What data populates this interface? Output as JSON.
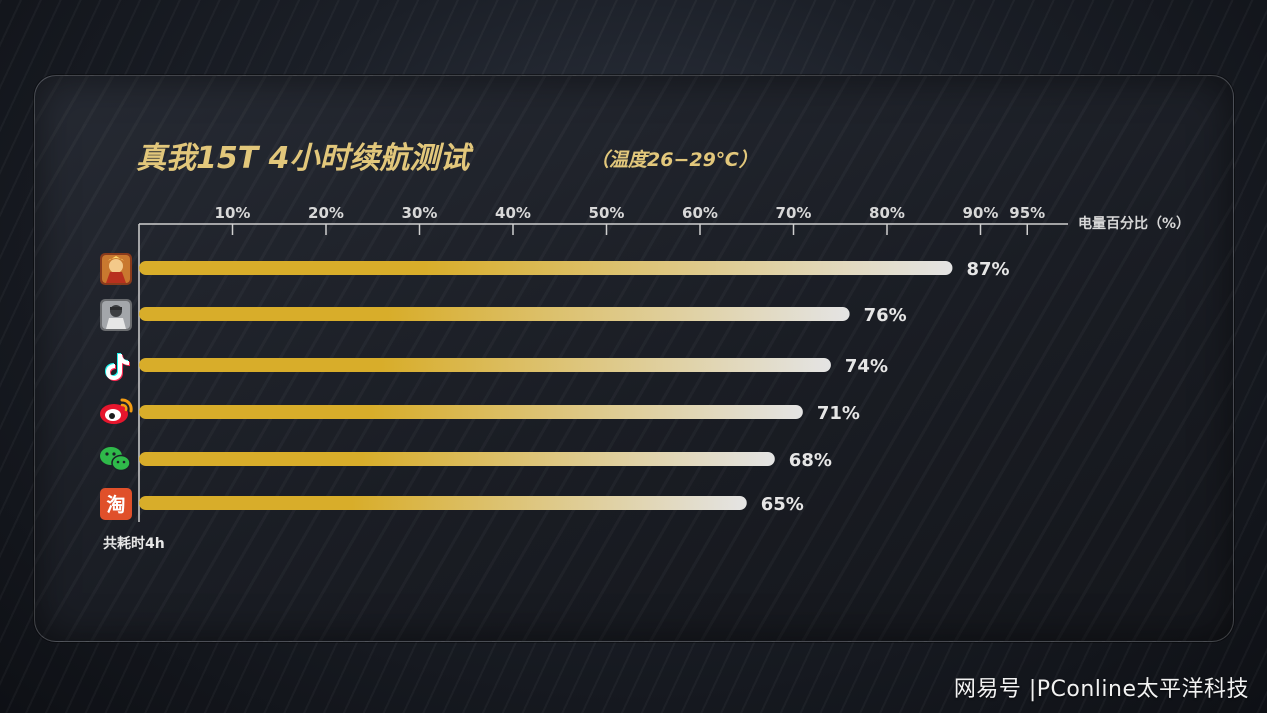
{
  "chart_data": {
    "type": "bar",
    "orientation": "horizontal",
    "title": "真我15T 4小时续航测试",
    "subtitle": "（温度26−29℃）",
    "x_axis_label": "电量百分比（%）",
    "x_ticks": [
      "10%",
      "20%",
      "30%",
      "40%",
      "50%",
      "60%",
      "70%",
      "80%",
      "90%",
      "95%"
    ],
    "x_tick_values": [
      10,
      20,
      30,
      40,
      50,
      60,
      70,
      80,
      90,
      95
    ],
    "xlim": [
      0,
      100
    ],
    "categories": [
      "honor-of-kings-icon",
      "pubg-icon",
      "tiktok-icon",
      "weibo-icon",
      "wechat-icon",
      "taobao-icon"
    ],
    "values": [
      87,
      76,
      74,
      71,
      68,
      65
    ],
    "value_labels": [
      "87%",
      "76%",
      "74%",
      "71%",
      "68%",
      "65%"
    ],
    "footnote": "共耗时4h",
    "legend": "none",
    "grid": false
  },
  "icons": {
    "taobao_char": "淘"
  },
  "colors": {
    "bar_start": "#d8ad2a",
    "bar_end": "#e4e4e4",
    "title": "#e2c77b",
    "axis": "#cfcfcf",
    "wechat": "#2fb94a",
    "weibo": "#e6162d",
    "taobao": "#e0502a"
  },
  "watermark": "网易号 |PConline太平洋科技"
}
